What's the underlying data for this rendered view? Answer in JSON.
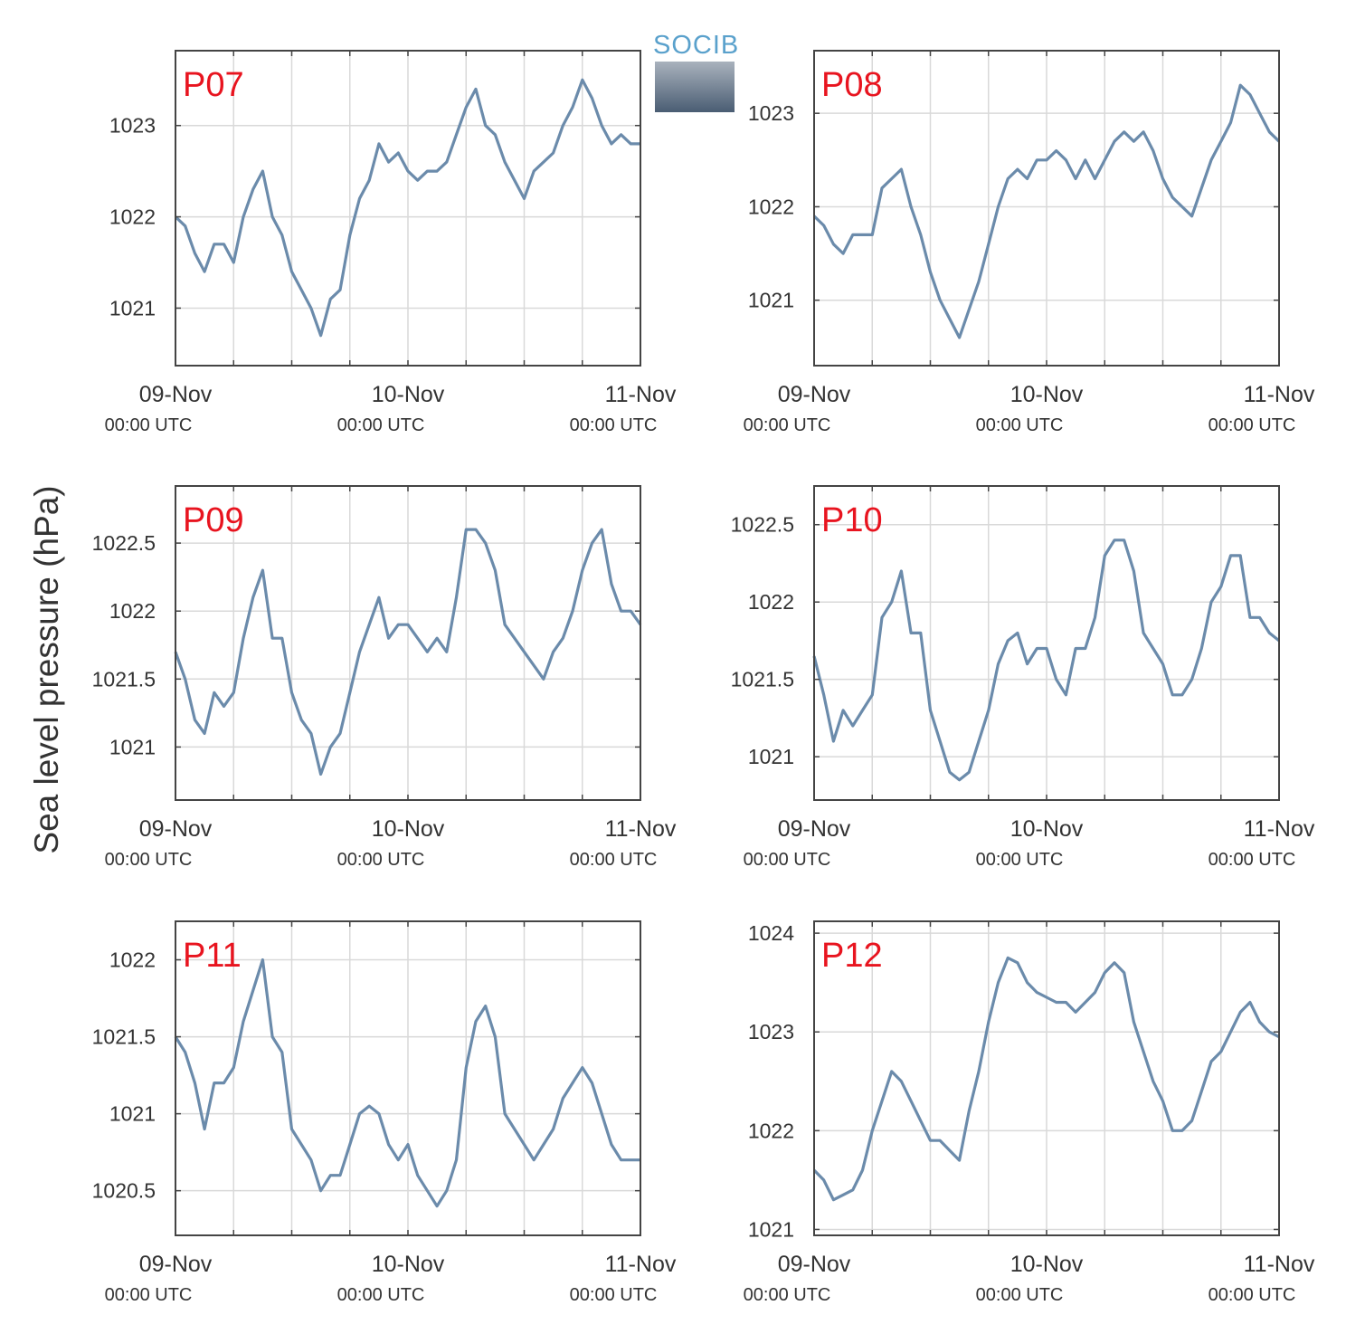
{
  "figure": {
    "ylabel": "Sea level pressure (hPa)",
    "logo_text": "SOCIB",
    "line_color": "#6b8bab",
    "panel_title_color": "#e8141f"
  },
  "chart_data": [
    {
      "type": "line",
      "title": "P07",
      "x_ticks": [
        "09-Nov",
        "10-Nov",
        "11-Nov"
      ],
      "x_tick_sub": [
        "00:00 UTC",
        "00:00 UTC",
        "00:00 UTC"
      ],
      "x_range_hours": [
        0,
        48
      ],
      "y_ticks": [
        1021,
        1022,
        1023
      ],
      "ylim": [
        1020.37,
        1023.82
      ],
      "series": [
        {
          "x_hours": [
            0,
            1,
            2,
            3,
            4,
            5,
            6,
            7,
            8,
            9,
            10,
            11,
            12,
            13,
            14,
            15,
            16,
            17,
            18,
            19,
            20,
            21,
            22,
            23,
            24,
            25,
            26,
            27,
            28,
            29,
            30,
            31,
            32,
            33,
            34,
            35,
            36,
            37,
            38,
            39,
            40,
            41,
            42,
            43,
            44,
            45,
            46,
            47,
            48
          ],
          "values": [
            1022.0,
            1021.9,
            1021.6,
            1021.4,
            1021.7,
            1021.7,
            1021.5,
            1022.0,
            1022.3,
            1022.5,
            1022.0,
            1021.8,
            1021.4,
            1021.2,
            1021.0,
            1020.7,
            1021.1,
            1021.2,
            1021.8,
            1022.2,
            1022.4,
            1022.8,
            1022.6,
            1022.7,
            1022.5,
            1022.4,
            1022.5,
            1022.5,
            1022.6,
            1022.9,
            1023.2,
            1023.4,
            1023.0,
            1022.9,
            1022.6,
            1022.4,
            1022.2,
            1022.5,
            1022.6,
            1022.7,
            1023.0,
            1023.2,
            1023.5,
            1023.3,
            1023.0,
            1022.8,
            1022.9,
            1022.8,
            1022.8
          ]
        }
      ]
    },
    {
      "type": "line",
      "title": "P08",
      "x_ticks": [
        "09-Nov",
        "10-Nov",
        "11-Nov"
      ],
      "x_tick_sub": [
        "00:00 UTC",
        "00:00 UTC",
        "00:00 UTC"
      ],
      "x_range_hours": [
        0,
        48
      ],
      "y_ticks": [
        1021,
        1022,
        1023
      ],
      "ylim": [
        1020.3,
        1023.67
      ],
      "series": [
        {
          "x_hours": [
            0,
            1,
            2,
            3,
            4,
            5,
            6,
            7,
            8,
            9,
            10,
            11,
            12,
            13,
            14,
            15,
            16,
            17,
            18,
            19,
            20,
            21,
            22,
            23,
            24,
            25,
            26,
            27,
            28,
            29,
            30,
            31,
            32,
            33,
            34,
            35,
            36,
            37,
            38,
            39,
            40,
            41,
            42,
            43,
            44,
            45,
            46,
            47,
            48
          ],
          "values": [
            1021.9,
            1021.8,
            1021.6,
            1021.5,
            1021.7,
            1021.7,
            1021.7,
            1022.2,
            1022.3,
            1022.4,
            1022.0,
            1021.7,
            1021.3,
            1021.0,
            1020.8,
            1020.6,
            1020.9,
            1021.2,
            1021.6,
            1022.0,
            1022.3,
            1022.4,
            1022.3,
            1022.5,
            1022.5,
            1022.6,
            1022.5,
            1022.3,
            1022.5,
            1022.3,
            1022.5,
            1022.7,
            1022.8,
            1022.7,
            1022.8,
            1022.6,
            1022.3,
            1022.1,
            1022.0,
            1021.9,
            1022.2,
            1022.5,
            1022.7,
            1022.9,
            1023.3,
            1023.2,
            1023.0,
            1022.8,
            1022.7
          ]
        }
      ]
    },
    {
      "type": "line",
      "title": "P09",
      "x_ticks": [
        "09-Nov",
        "10-Nov",
        "11-Nov"
      ],
      "x_tick_sub": [
        "00:00 UTC",
        "00:00 UTC",
        "00:00 UTC"
      ],
      "x_range_hours": [
        0,
        48
      ],
      "y_ticks": [
        1021,
        1021.5,
        1022,
        1022.5
      ],
      "ylim": [
        1020.61,
        1022.92
      ],
      "series": [
        {
          "x_hours": [
            0,
            1,
            2,
            3,
            4,
            5,
            6,
            7,
            8,
            9,
            10,
            11,
            12,
            13,
            14,
            15,
            16,
            17,
            18,
            19,
            20,
            21,
            22,
            23,
            24,
            25,
            26,
            27,
            28,
            29,
            30,
            31,
            32,
            33,
            34,
            35,
            36,
            37,
            38,
            39,
            40,
            41,
            42,
            43,
            44,
            45,
            46,
            47,
            48
          ],
          "values": [
            1021.7,
            1021.5,
            1021.2,
            1021.1,
            1021.4,
            1021.3,
            1021.4,
            1021.8,
            1022.1,
            1022.3,
            1021.8,
            1021.8,
            1021.4,
            1021.2,
            1021.1,
            1020.8,
            1021.0,
            1021.1,
            1021.4,
            1021.7,
            1021.9,
            1022.1,
            1021.8,
            1021.9,
            1021.9,
            1021.8,
            1021.7,
            1021.8,
            1021.7,
            1022.1,
            1022.6,
            1022.6,
            1022.5,
            1022.3,
            1021.9,
            1021.8,
            1021.7,
            1021.6,
            1021.5,
            1021.7,
            1021.8,
            1022.0,
            1022.3,
            1022.5,
            1022.6,
            1022.2,
            1022.0,
            1022.0,
            1021.9
          ]
        }
      ]
    },
    {
      "type": "line",
      "title": "P10",
      "x_ticks": [
        "09-Nov",
        "10-Nov",
        "11-Nov"
      ],
      "x_tick_sub": [
        "00:00 UTC",
        "00:00 UTC",
        "00:00 UTC"
      ],
      "x_range_hours": [
        0,
        48
      ],
      "y_ticks": [
        1021,
        1021.5,
        1022,
        1022.5
      ],
      "ylim": [
        1020.72,
        1022.75
      ],
      "series": [
        {
          "x_hours": [
            0,
            1,
            2,
            3,
            4,
            5,
            6,
            7,
            8,
            9,
            10,
            11,
            12,
            13,
            14,
            15,
            16,
            17,
            18,
            19,
            20,
            21,
            22,
            23,
            24,
            25,
            26,
            27,
            28,
            29,
            30,
            31,
            32,
            33,
            34,
            35,
            36,
            37,
            38,
            39,
            40,
            41,
            42,
            43,
            44,
            45,
            46,
            47,
            48
          ],
          "values": [
            1021.65,
            1021.4,
            1021.1,
            1021.3,
            1021.2,
            1021.3,
            1021.4,
            1021.9,
            1022.0,
            1022.2,
            1021.8,
            1021.8,
            1021.3,
            1021.1,
            1020.9,
            1020.85,
            1020.9,
            1021.1,
            1021.3,
            1021.6,
            1021.75,
            1021.8,
            1021.6,
            1021.7,
            1021.7,
            1021.5,
            1021.4,
            1021.7,
            1021.7,
            1021.9,
            1022.3,
            1022.4,
            1022.4,
            1022.2,
            1021.8,
            1021.7,
            1021.6,
            1021.4,
            1021.4,
            1021.5,
            1021.7,
            1022.0,
            1022.1,
            1022.3,
            1022.3,
            1021.9,
            1021.9,
            1021.8,
            1021.75
          ]
        }
      ]
    },
    {
      "type": "line",
      "title": "P11",
      "x_ticks": [
        "09-Nov",
        "10-Nov",
        "11-Nov"
      ],
      "x_tick_sub": [
        "00:00 UTC",
        "00:00 UTC",
        "00:00 UTC"
      ],
      "x_range_hours": [
        0,
        48
      ],
      "y_ticks": [
        1020.5,
        1021,
        1021.5,
        1022
      ],
      "ylim": [
        1020.21,
        1022.25
      ],
      "series": [
        {
          "x_hours": [
            0,
            1,
            2,
            3,
            4,
            5,
            6,
            7,
            8,
            9,
            10,
            11,
            12,
            13,
            14,
            15,
            16,
            17,
            18,
            19,
            20,
            21,
            22,
            23,
            24,
            25,
            26,
            27,
            28,
            29,
            30,
            31,
            32,
            33,
            34,
            35,
            36,
            37,
            38,
            39,
            40,
            41,
            42,
            43,
            44,
            45,
            46,
            47,
            48
          ],
          "values": [
            1021.5,
            1021.4,
            1021.2,
            1020.9,
            1021.2,
            1021.2,
            1021.3,
            1021.6,
            1021.8,
            1022.0,
            1021.5,
            1021.4,
            1020.9,
            1020.8,
            1020.7,
            1020.5,
            1020.6,
            1020.6,
            1020.8,
            1021.0,
            1021.05,
            1021.0,
            1020.8,
            1020.7,
            1020.8,
            1020.6,
            1020.5,
            1020.4,
            1020.5,
            1020.7,
            1021.3,
            1021.6,
            1021.7,
            1021.5,
            1021.0,
            1020.9,
            1020.8,
            1020.7,
            1020.8,
            1020.9,
            1021.1,
            1021.2,
            1021.3,
            1021.2,
            1021.0,
            1020.8,
            1020.7,
            1020.7,
            1020.7
          ]
        }
      ]
    },
    {
      "type": "line",
      "title": "P12",
      "x_ticks": [
        "09-Nov",
        "10-Nov",
        "11-Nov"
      ],
      "x_tick_sub": [
        "00:00 UTC",
        "00:00 UTC",
        "00:00 UTC"
      ],
      "x_range_hours": [
        0,
        48
      ],
      "y_ticks": [
        1021,
        1022,
        1023,
        1024
      ],
      "ylim": [
        1020.94,
        1024.12
      ],
      "series": [
        {
          "x_hours": [
            0,
            1,
            2,
            3,
            4,
            5,
            6,
            7,
            8,
            9,
            10,
            11,
            12,
            13,
            14,
            15,
            16,
            17,
            18,
            19,
            20,
            21,
            22,
            23,
            24,
            25,
            26,
            27,
            28,
            29,
            30,
            31,
            32,
            33,
            34,
            35,
            36,
            37,
            38,
            39,
            40,
            41,
            42,
            43,
            44,
            45,
            46,
            47,
            48
          ],
          "values": [
            1021.6,
            1021.5,
            1021.3,
            1021.35,
            1021.4,
            1021.6,
            1022.0,
            1022.3,
            1022.6,
            1022.5,
            1022.3,
            1022.1,
            1021.9,
            1021.9,
            1021.8,
            1021.7,
            1022.2,
            1022.6,
            1023.1,
            1023.5,
            1023.75,
            1023.7,
            1023.5,
            1023.4,
            1023.35,
            1023.3,
            1023.3,
            1023.2,
            1023.3,
            1023.4,
            1023.6,
            1023.7,
            1023.6,
            1023.1,
            1022.8,
            1022.5,
            1022.3,
            1022.0,
            1022.0,
            1022.1,
            1022.4,
            1022.7,
            1022.8,
            1023.0,
            1023.2,
            1023.3,
            1023.1,
            1023.0,
            1022.95
          ]
        }
      ]
    }
  ]
}
